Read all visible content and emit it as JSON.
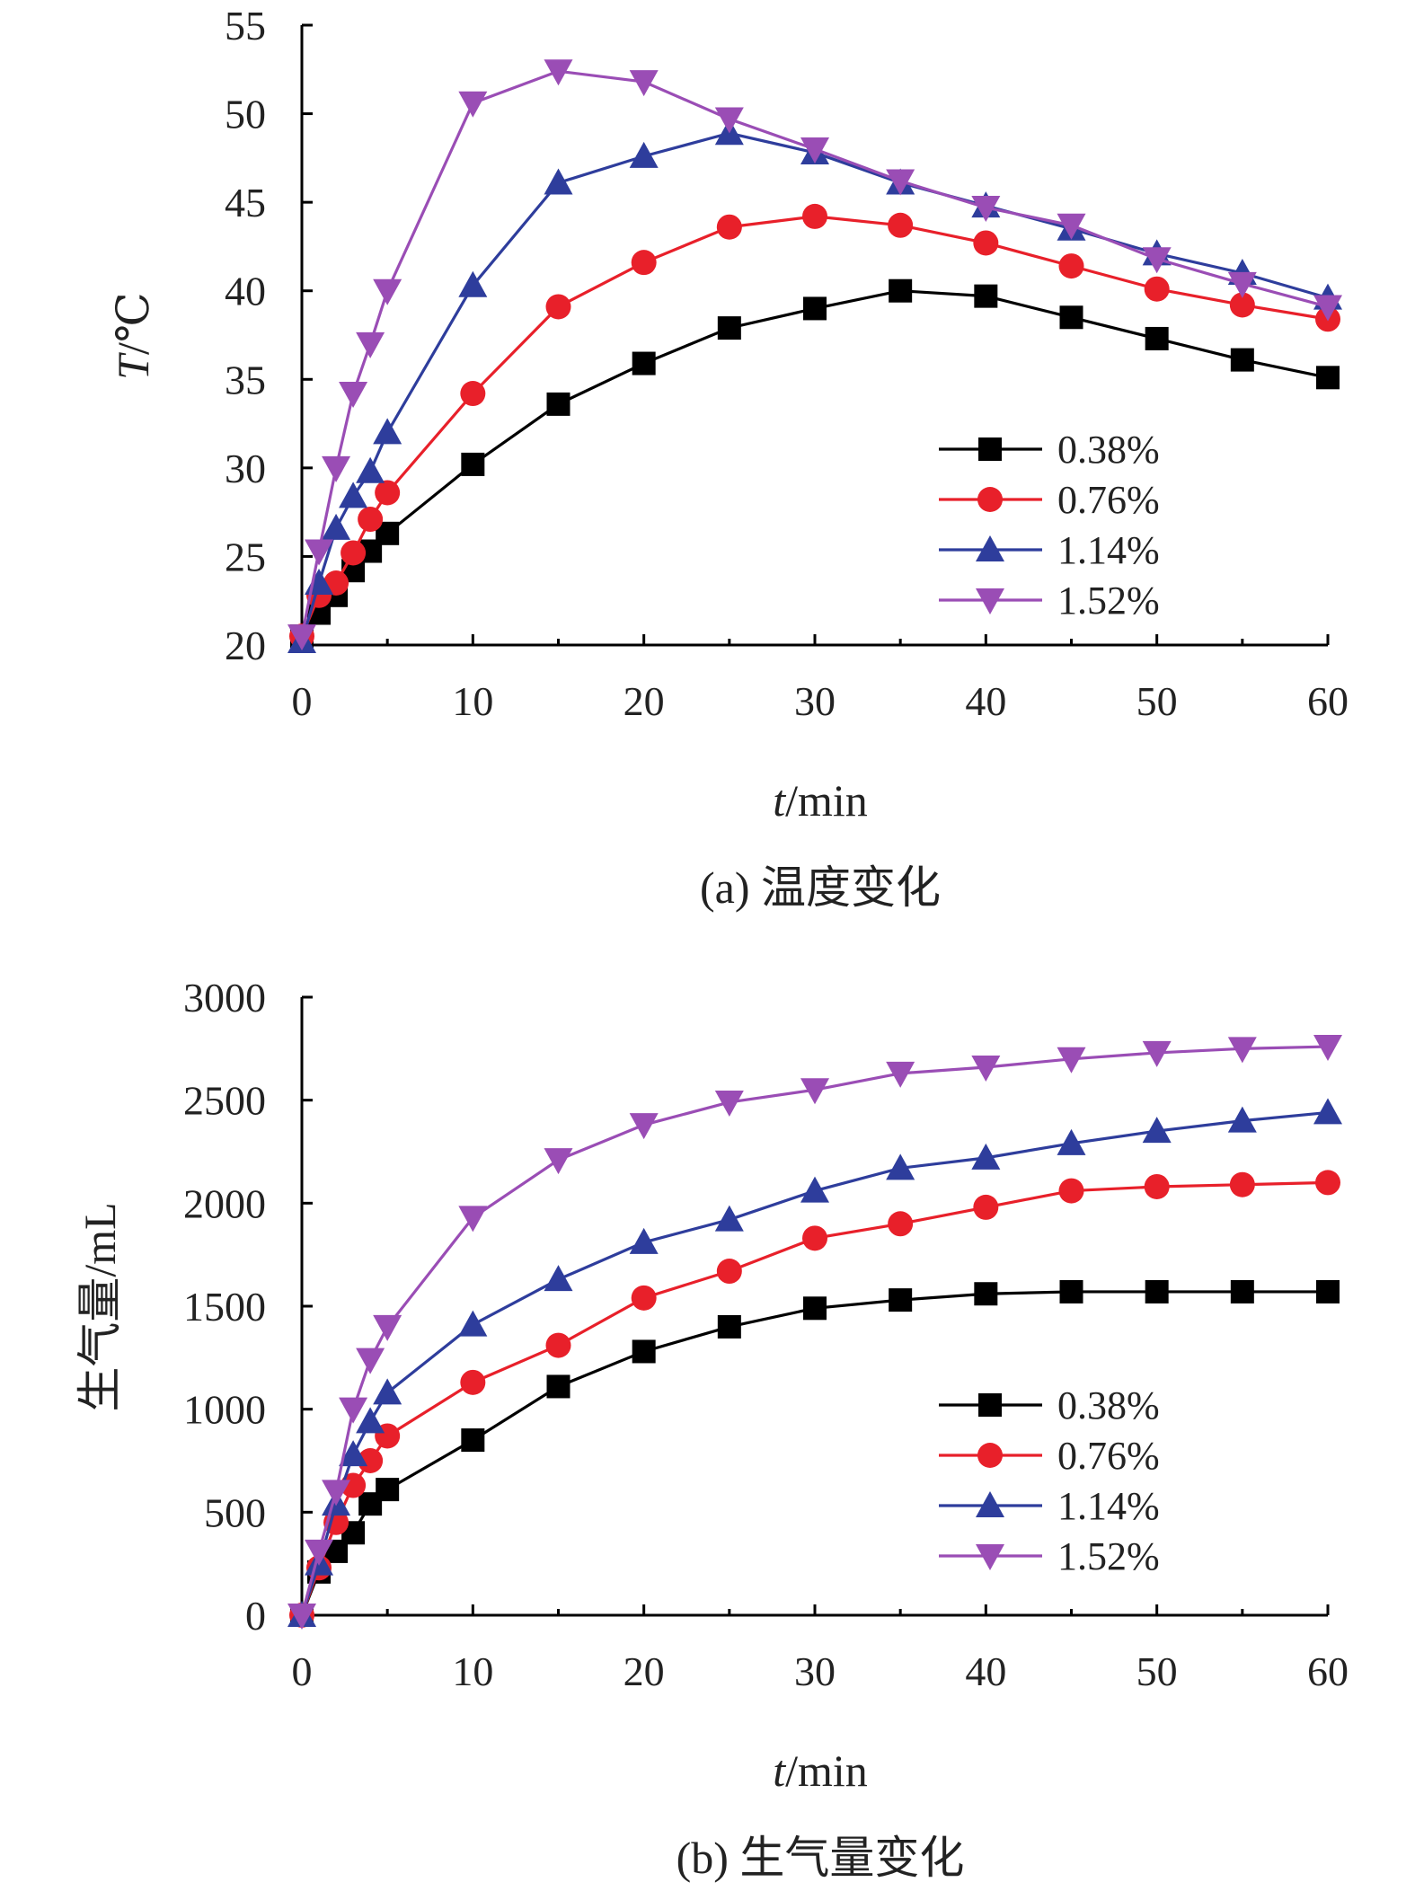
{
  "chart_data": [
    {
      "type": "line",
      "caption": "(a) 温度变化",
      "xlabel_italic": "t",
      "xlabel_unit": "/min",
      "ylabel_italic": "T",
      "ylabel_unit": "/℃",
      "xlim": [
        0,
        60
      ],
      "ylim": [
        20,
        55
      ],
      "xticks": [
        0,
        10,
        20,
        30,
        40,
        50,
        60
      ],
      "yticks": [
        20,
        25,
        30,
        35,
        40,
        45,
        50,
        55
      ],
      "grid": false,
      "legend_position": "lower-right",
      "x": [
        0,
        1,
        2,
        3,
        4,
        5,
        10,
        15,
        20,
        25,
        30,
        35,
        40,
        45,
        50,
        55,
        60
      ],
      "series": [
        {
          "name": "0.38%",
          "color": "#000000",
          "marker": "square",
          "values": [
            20.5,
            21.8,
            22.8,
            24.2,
            25.3,
            26.3,
            30.2,
            33.6,
            35.9,
            37.9,
            39.0,
            40.0,
            39.7,
            38.5,
            37.3,
            36.1,
            35.1
          ]
        },
        {
          "name": "0.76%",
          "color": "#e8202a",
          "marker": "circle",
          "values": [
            20.5,
            22.8,
            23.5,
            25.2,
            27.1,
            28.6,
            34.2,
            39.1,
            41.6,
            43.6,
            44.2,
            43.7,
            42.7,
            41.4,
            40.1,
            39.2,
            38.4
          ]
        },
        {
          "name": "1.14%",
          "color": "#2e3d9c",
          "marker": "triangle-up",
          "values": [
            20.2,
            23.5,
            26.6,
            28.4,
            29.8,
            32.0,
            40.3,
            46.1,
            47.6,
            48.9,
            47.8,
            46.1,
            44.8,
            43.5,
            42.1,
            41.0,
            39.6
          ]
        },
        {
          "name": "1.52%",
          "color": "#9a4db5",
          "marker": "triangle-down",
          "values": [
            20.5,
            25.3,
            30.0,
            34.2,
            37.0,
            40.0,
            50.6,
            52.4,
            51.8,
            49.7,
            48.0,
            46.2,
            44.7,
            43.7,
            41.8,
            40.4,
            39.1
          ]
        }
      ]
    },
    {
      "type": "line",
      "caption": "(b) 生气量变化",
      "xlabel_italic": "t",
      "xlabel_unit": "/min",
      "ylabel_italic": "",
      "ylabel_unit": "生气量/mL",
      "xlim": [
        0,
        60
      ],
      "ylim": [
        0,
        3000
      ],
      "xticks": [
        0,
        10,
        20,
        30,
        40,
        50,
        60
      ],
      "yticks": [
        0,
        500,
        1000,
        1500,
        2000,
        2500,
        3000
      ],
      "grid": false,
      "legend_position": "lower-right",
      "x": [
        0,
        1,
        2,
        3,
        4,
        5,
        10,
        15,
        20,
        25,
        30,
        35,
        40,
        45,
        50,
        55,
        60
      ],
      "series": [
        {
          "name": "0.38%",
          "color": "#000000",
          "marker": "square",
          "values": [
            0,
            210,
            310,
            400,
            540,
            610,
            850,
            1110,
            1280,
            1400,
            1490,
            1530,
            1560,
            1570,
            1570,
            1570,
            1570
          ]
        },
        {
          "name": "0.76%",
          "color": "#e8202a",
          "marker": "circle",
          "values": [
            0,
            230,
            450,
            630,
            750,
            870,
            1130,
            1310,
            1540,
            1670,
            1830,
            1900,
            1980,
            2060,
            2080,
            2090,
            2100
          ]
        },
        {
          "name": "1.14%",
          "color": "#2e3d9c",
          "marker": "triangle-up",
          "values": [
            0,
            250,
            540,
            780,
            940,
            1080,
            1410,
            1630,
            1810,
            1920,
            2060,
            2170,
            2220,
            2290,
            2350,
            2400,
            2440
          ]
        },
        {
          "name": "1.52%",
          "color": "#9a4db5",
          "marker": "triangle-down",
          "values": [
            0,
            310,
            600,
            1000,
            1240,
            1400,
            1930,
            2210,
            2380,
            2490,
            2550,
            2630,
            2660,
            2700,
            2730,
            2750,
            2760
          ]
        }
      ]
    }
  ]
}
